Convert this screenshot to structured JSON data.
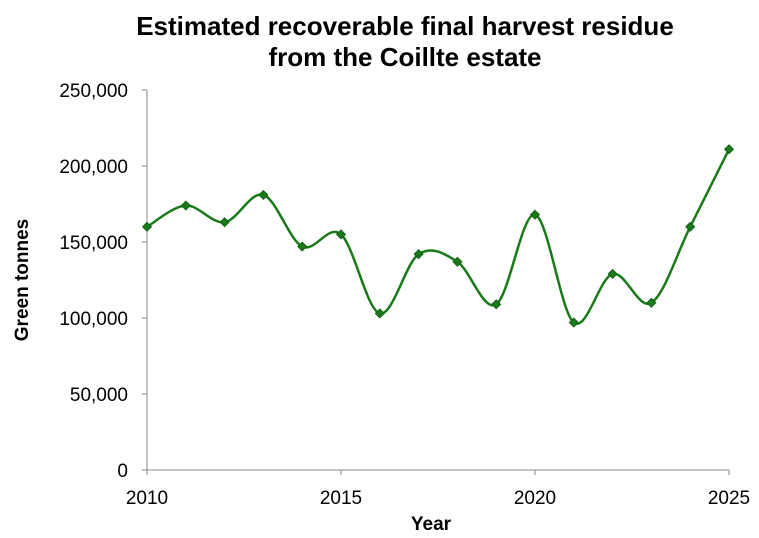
{
  "chart_data": {
    "type": "line",
    "title_line1": "Estimated recoverable final harvest residue",
    "title_line2": "from the Coillte estate",
    "xlabel": "Year",
    "ylabel": "Green tonnes",
    "x": [
      2010,
      2011,
      2012,
      2013,
      2014,
      2015,
      2016,
      2017,
      2018,
      2019,
      2020,
      2021,
      2022,
      2023,
      2024,
      2025
    ],
    "series": [
      {
        "values": [
          160000,
          174000,
          163000,
          181000,
          147000,
          155000,
          103000,
          142000,
          137000,
          109000,
          168000,
          97000,
          129000,
          110000,
          160000,
          211000
        ],
        "color": "#1a7a1a",
        "marker": "diamond",
        "smooth": true
      }
    ],
    "xlim": [
      2010,
      2025
    ],
    "ylim": [
      0,
      250000
    ],
    "xticks": [
      2010,
      2015,
      2020,
      2025
    ],
    "xtick_labels": [
      "2010",
      "2015",
      "2020",
      "2025"
    ],
    "yticks": [
      0,
      50000,
      100000,
      150000,
      200000,
      250000
    ],
    "ytick_labels": [
      "0",
      "50,000",
      "100,000",
      "150,000",
      "200,000",
      "250,000"
    ],
    "grid": false,
    "legend": "none"
  }
}
